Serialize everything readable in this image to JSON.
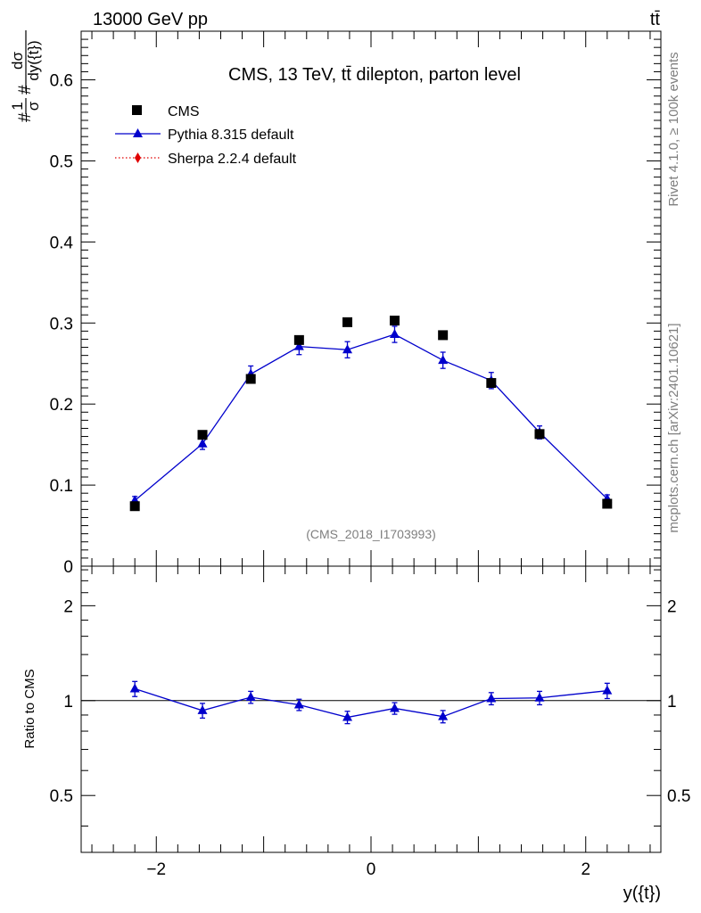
{
  "header": {
    "energy_label": "13000 GeV pp",
    "process_label": "tt̄"
  },
  "side_labels": {
    "rivet": "Rivet 4.1.0, ≥ 100k events",
    "mcplots": "mcplots.cern.ch [arXiv:2401.10621]"
  },
  "chart_data": [
    {
      "type": "scatter",
      "title": "CMS, 13 TeV, tt̄ dilepton, parton level",
      "watermark": "(CMS_2018_I1703993)",
      "ylabel": "#frac{1}{σ}#frac{dσ}{dy({t})}",
      "ylabel_parts": {
        "prefix": "#",
        "num1": "1",
        "den1": "σ",
        "mid": "#",
        "num2": "dσ",
        "den2": "dy({t})"
      },
      "xlim": [
        -2.7,
        2.7
      ],
      "ylim": [
        0,
        0.66
      ],
      "yticks": [
        0,
        0.1,
        0.2,
        0.3,
        0.4,
        0.5,
        0.6
      ],
      "ytick_labels": [
        "0",
        "0.1",
        "0.2",
        "0.3",
        "0.4",
        "0.5",
        "0.6"
      ],
      "legend_position": "top-left",
      "legend": [
        {
          "label": "CMS",
          "style": "square",
          "color": "#000000"
        },
        {
          "label": "Pythia 8.315 default",
          "style": "triangle-line",
          "color": "#0000cc"
        },
        {
          "label": "Sherpa 2.2.4 default",
          "style": "diamond-dotted",
          "color": "#e00000"
        }
      ],
      "x": [
        -2.2,
        -1.57,
        -1.12,
        -0.67,
        -0.22,
        0.22,
        0.67,
        1.12,
        1.57,
        2.2
      ],
      "series": [
        {
          "name": "CMS",
          "color": "#000000",
          "values": [
            0.074,
            0.162,
            0.231,
            0.279,
            0.301,
            0.303,
            0.285,
            0.226,
            0.163,
            0.077
          ]
        },
        {
          "name": "Pythia 8.315 default",
          "color": "#0000cc",
          "values": [
            0.081,
            0.151,
            0.237,
            0.271,
            0.267,
            0.286,
            0.254,
            0.229,
            0.165,
            0.083
          ],
          "errors": [
            0.005,
            0.007,
            0.01,
            0.01,
            0.01,
            0.01,
            0.01,
            0.01,
            0.008,
            0.005
          ]
        }
      ]
    },
    {
      "type": "line",
      "ylabel": "Ratio to CMS",
      "xlabel": "y({t})",
      "xlim": [
        -2.7,
        2.7
      ],
      "ylim": [
        0.33,
        2.67
      ],
      "yscale": "log",
      "yticks": [
        0.5,
        1,
        2
      ],
      "ytick_labels": [
        "0.5",
        "1",
        "2"
      ],
      "xticks": [
        -2,
        0,
        2
      ],
      "xtick_labels": [
        "−2",
        "0",
        "2"
      ],
      "reference_line": 1,
      "x": [
        -2.2,
        -1.57,
        -1.12,
        -0.67,
        -0.22,
        0.22,
        0.67,
        1.12,
        1.57,
        2.2
      ],
      "series": [
        {
          "name": "Pythia 8.315 default",
          "color": "#0000cc",
          "values": [
            1.09,
            0.93,
            1.025,
            0.97,
            0.885,
            0.945,
            0.89,
            1.015,
            1.02,
            1.075
          ],
          "errors": [
            0.06,
            0.05,
            0.045,
            0.04,
            0.04,
            0.04,
            0.04,
            0.045,
            0.05,
            0.06
          ]
        }
      ]
    }
  ]
}
